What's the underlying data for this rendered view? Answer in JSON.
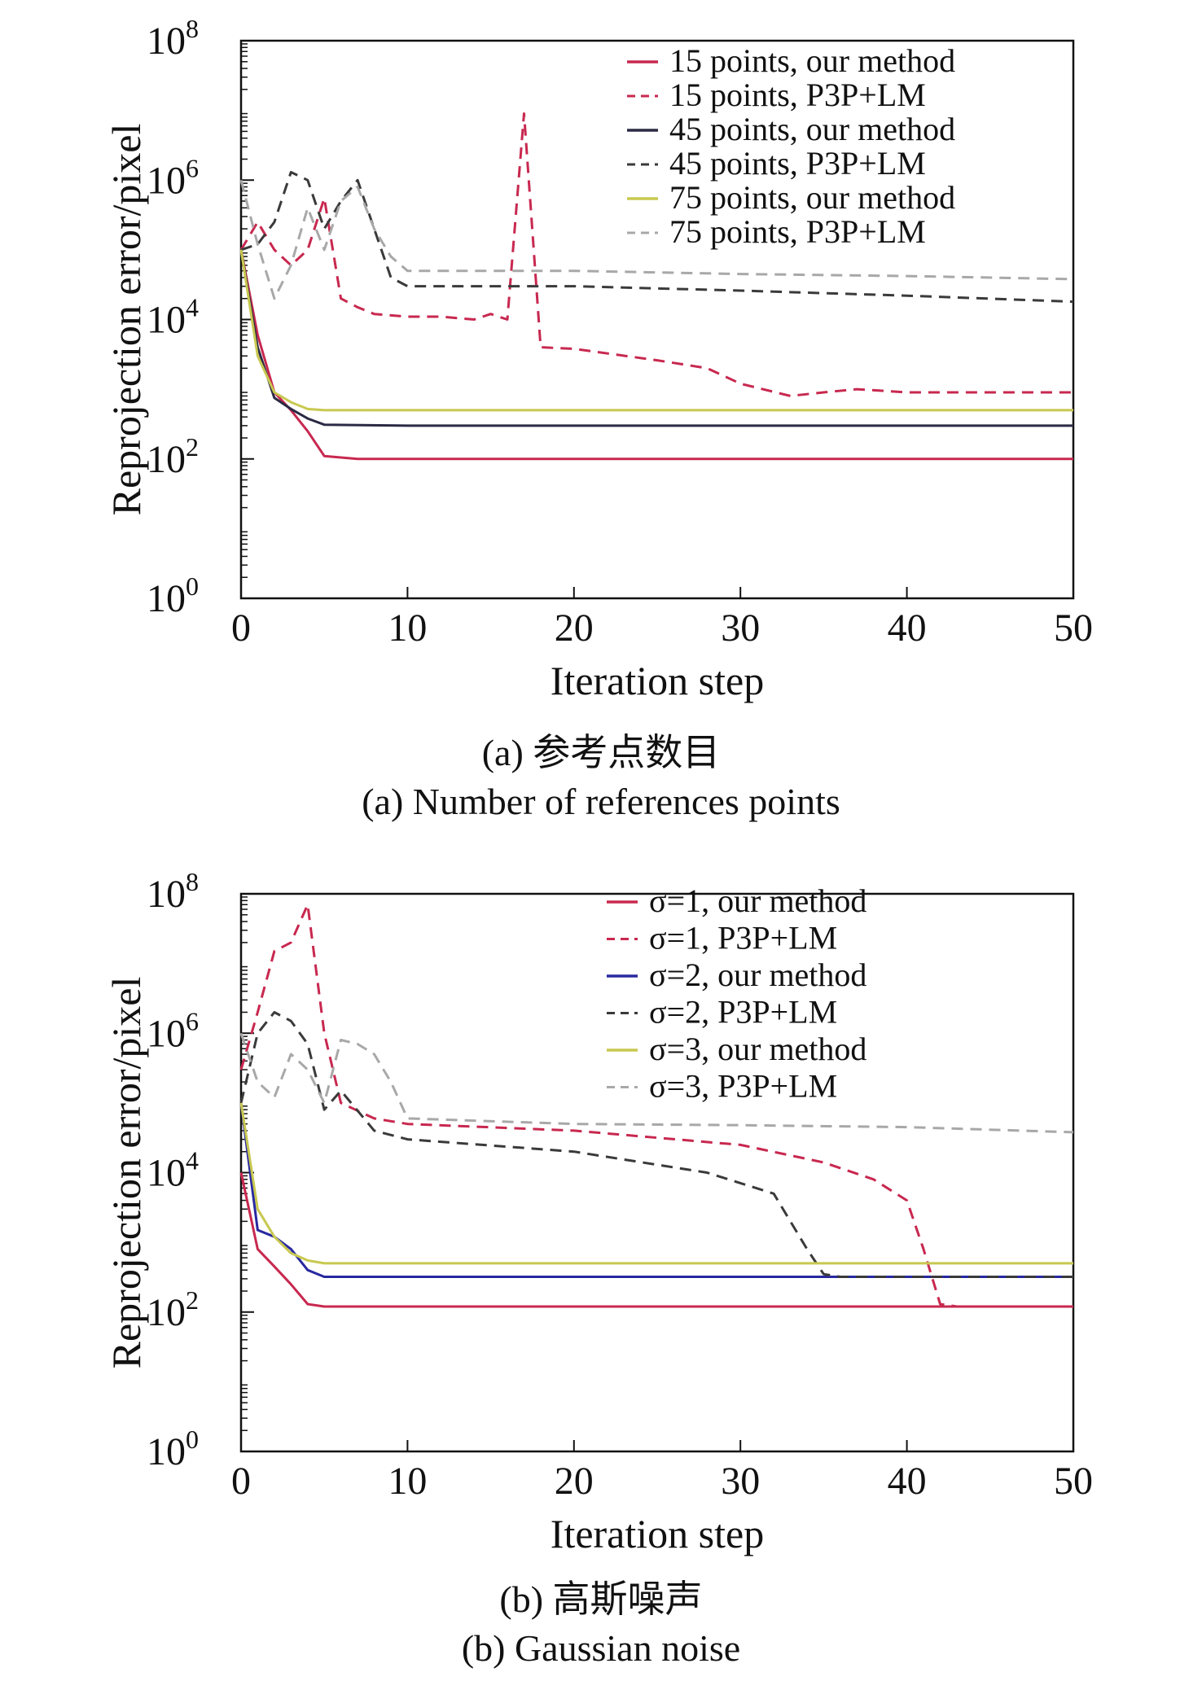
{
  "chart_data": [
    {
      "type": "line",
      "xlabel": "Iteration step",
      "ylabel": "Reprojection error/pixel",
      "xlim": [
        0,
        50
      ],
      "ylim_log10": [
        0,
        8
      ],
      "y_scale": "log",
      "x_ticks": [
        "0",
        "10",
        "20",
        "30",
        "40",
        "50"
      ],
      "y_ticks": [
        {
          "base": "10",
          "exp": "0"
        },
        {
          "base": "10",
          "exp": "2"
        },
        {
          "base": "10",
          "exp": "4"
        },
        {
          "base": "10",
          "exp": "6"
        },
        {
          "base": "10",
          "exp": "8"
        }
      ],
      "legend_position": "top-right",
      "caption_cn": "(a) 参考点数目",
      "caption_en": "(a) Number of references points",
      "series": [
        {
          "name": "15 points, our method",
          "color": "#c8284f",
          "dash": false,
          "x": [
            0,
            1,
            2,
            3,
            4,
            5,
            7,
            10,
            50
          ],
          "y": [
            100000,
            6000,
            900,
            500,
            250,
            110,
            100,
            100,
            100
          ]
        },
        {
          "name": "15 points, P3P+LM",
          "color": "#c8284f",
          "dash": true,
          "x": [
            0,
            1,
            2,
            3,
            4,
            5,
            6,
            7,
            8,
            10,
            12,
            14,
            15,
            16,
            17,
            18,
            20,
            25,
            28,
            30,
            33,
            35,
            37,
            40,
            50
          ],
          "y": [
            100000,
            250000,
            100000,
            60000,
            100000,
            550000,
            20000,
            15000,
            12000,
            11000,
            11000,
            10000,
            12000,
            10000,
            9000000,
            4000,
            3800,
            2600,
            2000,
            1200,
            800,
            900,
            1000,
            900,
            900
          ]
        },
        {
          "name": "45 points, our method",
          "color": "#2a2a45",
          "dash": false,
          "x": [
            0,
            1,
            2,
            3,
            4,
            5,
            10,
            50
          ],
          "y": [
            100000,
            4000,
            750,
            520,
            380,
            310,
            300,
            300
          ]
        },
        {
          "name": "45 points, P3P+LM",
          "color": "#3a3a3a",
          "dash": true,
          "x": [
            0,
            1,
            2,
            3,
            4,
            5,
            6,
            7,
            8,
            9,
            10,
            20,
            30,
            40,
            50
          ],
          "y": [
            100000,
            120000,
            250000,
            1300000,
            1000000,
            200000,
            500000,
            1000000,
            200000,
            40000,
            30000,
            30000,
            26000,
            22000,
            18000
          ]
        },
        {
          "name": "75 points, our method",
          "color": "#c8c850",
          "dash": false,
          "x": [
            0,
            1,
            2,
            3,
            4,
            5,
            10,
            50
          ],
          "y": [
            100000,
            3000,
            900,
            650,
            520,
            500,
            500,
            500
          ]
        },
        {
          "name": "75 points, P3P+LM",
          "color": "#a8a8a8",
          "dash": true,
          "x": [
            0,
            1,
            2,
            3,
            4,
            5,
            6,
            7,
            8,
            9,
            10,
            20,
            30,
            40,
            50
          ],
          "y": [
            1000000,
            120000,
            20000,
            60000,
            400000,
            100000,
            500000,
            800000,
            200000,
            80000,
            50000,
            50000,
            45000,
            42000,
            38000
          ]
        }
      ]
    },
    {
      "type": "line",
      "xlabel": "Iteration step",
      "ylabel": "Reprojection error/pixel",
      "xlim": [
        0,
        50
      ],
      "ylim_log10": [
        0,
        8
      ],
      "y_scale": "log",
      "x_ticks": [
        "0",
        "10",
        "20",
        "30",
        "40",
        "50"
      ],
      "y_ticks": [
        {
          "base": "10",
          "exp": "0"
        },
        {
          "base": "10",
          "exp": "2"
        },
        {
          "base": "10",
          "exp": "4"
        },
        {
          "base": "10",
          "exp": "6"
        },
        {
          "base": "10",
          "exp": "8"
        }
      ],
      "legend_position": "top-right",
      "caption_cn": "(b) 高斯噪声",
      "caption_en": "(b) Gaussian noise",
      "series": [
        {
          "name": "σ=1, our method",
          "color": "#c8284f",
          "dash": false,
          "x": [
            0,
            1,
            2,
            3,
            4,
            5,
            10,
            50
          ],
          "y": [
            10000,
            800,
            450,
            250,
            130,
            120,
            120,
            120
          ]
        },
        {
          "name": "σ=1, P3P+LM",
          "color": "#c8284f",
          "dash": true,
          "x": [
            0,
            1,
            2,
            3,
            4,
            5,
            6,
            8,
            10,
            20,
            30,
            35,
            38,
            40,
            41,
            42,
            43,
            44,
            50
          ],
          "y": [
            300000,
            2000000,
            15000000,
            20000000,
            70000000,
            1000000,
            100000,
            60000,
            50000,
            40000,
            25000,
            14000,
            8000,
            4000,
            800,
            130,
            120,
            120,
            120
          ]
        },
        {
          "name": "σ=2, our method",
          "color": "#2828a0",
          "dash": false,
          "x": [
            0,
            1,
            2,
            3,
            4,
            5,
            10,
            50
          ],
          "y": [
            100000,
            1500,
            1200,
            800,
            400,
            320,
            320,
            320
          ]
        },
        {
          "name": "σ=2, P3P+LM",
          "color": "#3a3a3a",
          "dash": true,
          "x": [
            0,
            1,
            2,
            3,
            4,
            5,
            6,
            8,
            10,
            20,
            28,
            32,
            33,
            34,
            35,
            36,
            50
          ],
          "y": [
            100000,
            1000000,
            2000000,
            1500000,
            700000,
            80000,
            150000,
            40000,
            30000,
            20000,
            10000,
            5000,
            2000,
            800,
            350,
            320,
            320
          ]
        },
        {
          "name": "σ=3, our method",
          "color": "#c8c850",
          "dash": false,
          "x": [
            0,
            1,
            2,
            3,
            4,
            5,
            10,
            50
          ],
          "y": [
            100000,
            3000,
            1200,
            700,
            550,
            500,
            500,
            500
          ]
        },
        {
          "name": "σ=3, P3P+LM",
          "color": "#a8a8a8",
          "dash": true,
          "x": [
            0,
            1,
            2,
            3,
            4,
            5,
            6,
            7,
            8,
            9,
            10,
            20,
            30,
            40,
            50
          ],
          "y": [
            1000000,
            200000,
            120000,
            500000,
            300000,
            100000,
            800000,
            700000,
            500000,
            200000,
            60000,
            50000,
            48000,
            45000,
            38000
          ]
        }
      ]
    }
  ]
}
